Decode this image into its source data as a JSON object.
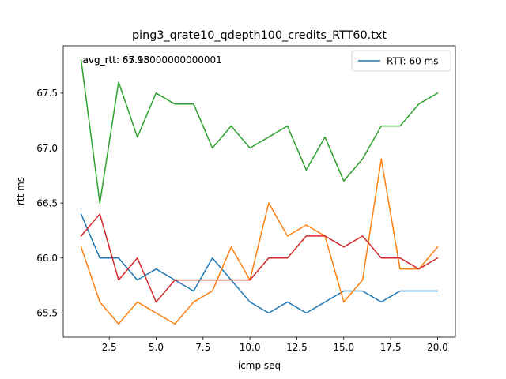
{
  "chart_data": {
    "type": "line",
    "title": "ping3_qrate10_qdepth100_credits_RTT60.txt",
    "xlabel": "icmp seq",
    "ylabel": "rtt ms",
    "xlim": [
      0.05,
      20.95
    ],
    "ylim": [
      65.28,
      67.93
    ],
    "xticks": [
      2.5,
      5.0,
      7.5,
      10.0,
      12.5,
      15.0,
      17.5,
      20.0
    ],
    "xtick_labels": [
      "2.5",
      "5.0",
      "7.5",
      "10.0",
      "12.5",
      "15.0",
      "17.5",
      "20.0"
    ],
    "yticks": [
      65.5,
      66.0,
      66.5,
      67.0,
      67.5
    ],
    "ytick_labels": [
      "65.5",
      "66.0",
      "66.5",
      "67.0",
      "67.5"
    ],
    "grid": false,
    "legend": {
      "placement": "top-right",
      "entries": [
        {
          "label": "RTT: 60 ms",
          "color": "#1f77b4"
        }
      ]
    },
    "annotations": [
      {
        "text": "avg_rtt: 65.95",
        "x": 1,
        "y": 67.8
      },
      {
        "text": "avg_rtt: 67.18000000000001",
        "x": 1,
        "y": 67.8
      }
    ],
    "x": [
      1,
      2,
      3,
      4,
      5,
      6,
      7,
      8,
      9,
      10,
      11,
      12,
      13,
      14,
      15,
      16,
      17,
      18,
      19,
      20
    ],
    "series": [
      {
        "color": "#1f77b4",
        "values": [
          66.4,
          66.0,
          66.0,
          65.8,
          65.9,
          65.8,
          65.7,
          66.0,
          65.8,
          65.6,
          65.5,
          65.6,
          65.5,
          65.6,
          65.7,
          65.7,
          65.6,
          65.7,
          65.7,
          65.7
        ]
      },
      {
        "color": "#ff7f0e",
        "values": [
          66.1,
          65.6,
          65.4,
          65.6,
          65.5,
          65.4,
          65.6,
          65.7,
          66.1,
          65.8,
          66.5,
          66.2,
          66.3,
          66.2,
          65.6,
          65.8,
          66.9,
          65.9,
          65.9,
          66.1
        ]
      },
      {
        "color": "#2ca02c",
        "values": [
          67.8,
          66.5,
          67.6,
          67.1,
          67.5,
          67.4,
          67.4,
          67.0,
          67.2,
          67.0,
          67.1,
          67.2,
          66.8,
          67.1,
          66.7,
          66.9,
          67.2,
          67.2,
          67.4,
          67.5
        ]
      },
      {
        "color": "#d62728",
        "values": [
          66.2,
          66.4,
          65.8,
          66.0,
          65.6,
          65.8,
          65.8,
          65.8,
          65.8,
          65.8,
          66.0,
          66.0,
          66.2,
          66.2,
          66.1,
          66.2,
          66.0,
          66.0,
          65.9,
          66.0
        ]
      }
    ]
  }
}
